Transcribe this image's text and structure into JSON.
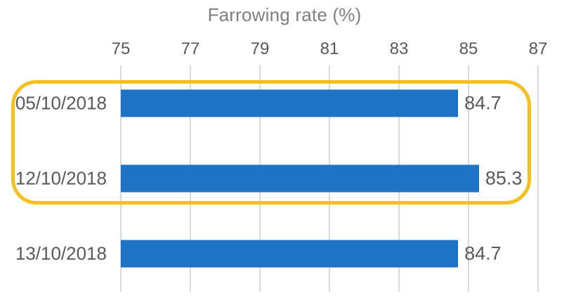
{
  "chart_data": {
    "type": "bar",
    "orientation": "horizontal",
    "title": "Farrowing rate (%)",
    "categories": [
      "05/10/2018",
      "12/10/2018",
      "13/10/2018"
    ],
    "values": [
      84.7,
      85.3,
      84.7
    ],
    "value_labels": [
      "84.7",
      "85.3",
      "84.7"
    ],
    "xlim": [
      75,
      87
    ],
    "x_ticks": [
      "75",
      "77",
      "79",
      "81",
      "83",
      "85",
      "87"
    ],
    "axis_position": "top",
    "grid": true,
    "legend": false,
    "colors": {
      "bar": "#1f73c4",
      "gridline": "#dadada",
      "tick_text": "#595959",
      "category_text": "#595959",
      "value_text": "#595959",
      "title_text": "#7f7f7f",
      "highlight_border": "#f5c01e"
    },
    "highlight": {
      "highlighted_categories": [
        "05/10/2018",
        "12/10/2018"
      ],
      "shape": "rounded-rectangle"
    }
  }
}
